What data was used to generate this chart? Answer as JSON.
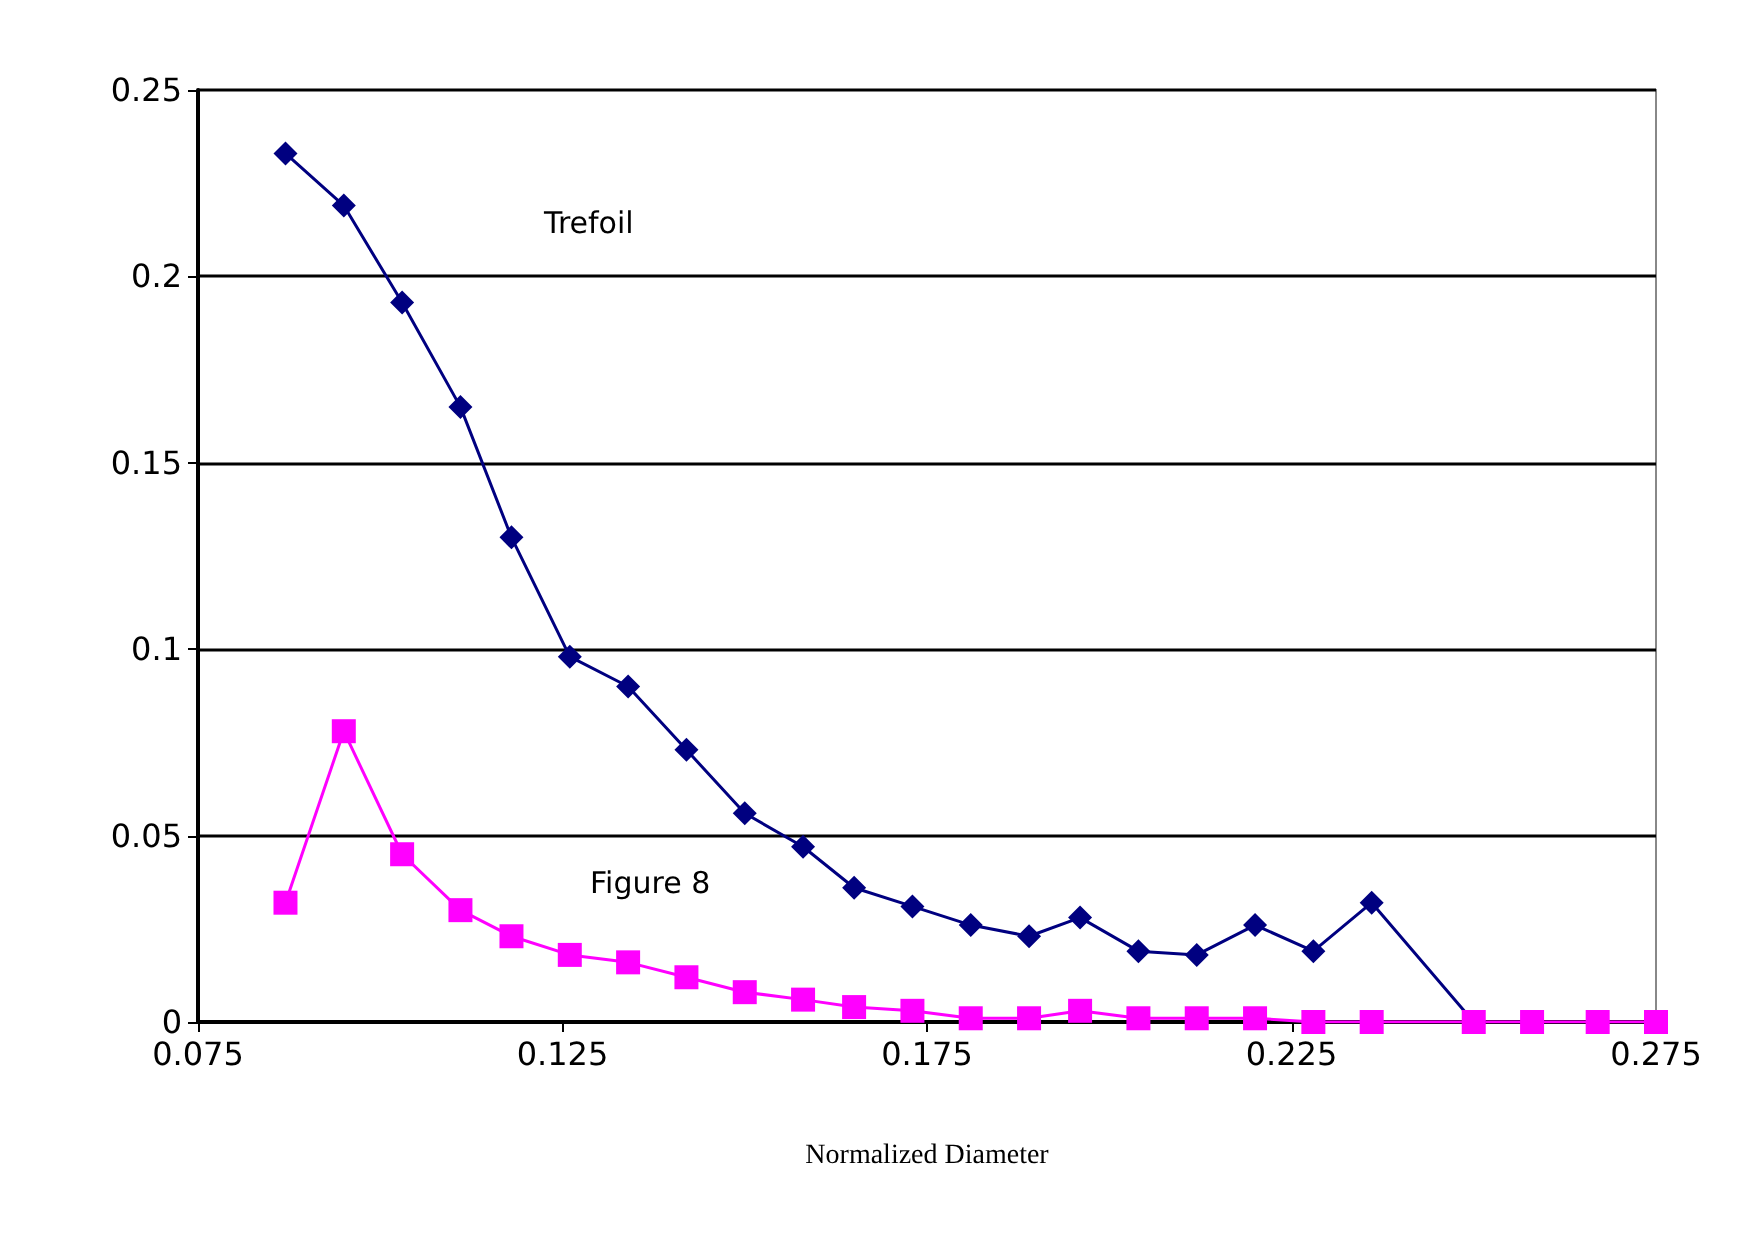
{
  "chart_data": {
    "type": "line",
    "xlabel": "Normalized Diameter",
    "series": [
      {
        "color": "#000080",
        "marker": "diamond",
        "x": [
          0.087,
          0.095,
          0.103,
          0.111,
          0.118,
          0.126,
          0.134,
          0.142,
          0.15,
          0.158,
          0.165,
          0.173,
          0.181,
          0.189,
          0.196,
          0.204,
          0.212,
          0.22,
          0.228,
          0.236,
          0.25
        ],
        "values": [
          0.233,
          0.219,
          0.193,
          0.165,
          0.13,
          0.098,
          0.09,
          0.073,
          0.056,
          0.047,
          0.036,
          0.031,
          0.026,
          0.023,
          0.028,
          0.019,
          0.018,
          0.026,
          0.019,
          0.032,
          0
        ]
      },
      {
        "color": "#ff00ff",
        "marker": "square",
        "x": [
          0.087,
          0.095,
          0.103,
          0.111,
          0.118,
          0.126,
          0.134,
          0.142,
          0.15,
          0.158,
          0.165,
          0.173,
          0.181,
          0.189,
          0.196,
          0.204,
          0.212,
          0.22,
          0.228,
          0.236,
          0.25,
          0.258,
          0.267,
          0.275
        ],
        "values": [
          0.032,
          0.078,
          0.045,
          0.03,
          0.023,
          0.018,
          0.016,
          0.012,
          0.008,
          0.006,
          0.004,
          0.003,
          0.001,
          0.001,
          0.003,
          0.001,
          0.001,
          0.001,
          0,
          0,
          0,
          0,
          0,
          0
        ]
      }
    ],
    "annotations": [
      "Trefoil",
      "Figure 8"
    ],
    "xlim": [
      0.075,
      0.275
    ],
    "xticks": [
      0.075,
      0.125,
      0.175,
      0.225,
      0.275
    ],
    "ylim": [
      0,
      0.25
    ],
    "yticks": [
      0,
      0.05,
      0.1,
      0.15,
      0.2,
      0.25
    ],
    "grid": "y"
  }
}
